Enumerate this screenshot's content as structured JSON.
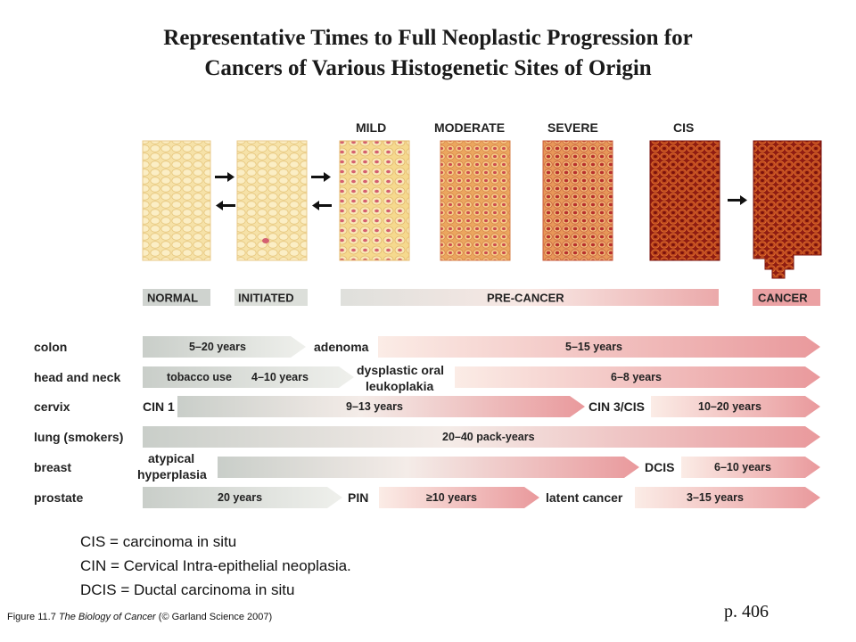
{
  "title": {
    "line1": "Representative Times to Full Neoplastic Progression for",
    "line2": "Cancers of Various Histogenetic Sites of Origin"
  },
  "stages": {
    "mild": "MILD",
    "moderate": "MODERATE",
    "severe": "SEVERE",
    "cis": "CIS"
  },
  "phases": {
    "normal": "NORMAL",
    "initiated": "INITIATED",
    "precancer": "PRE-CANCER",
    "cancer": "CANCER"
  },
  "rows": {
    "colon": {
      "label": "colon",
      "seg1": "5–20 years",
      "mid": "adenoma",
      "seg2": "5–15 years"
    },
    "head": {
      "label": "head and neck",
      "seg1a": "tobacco use",
      "seg1b": "4–10 years",
      "mid1": "dysplastic oral",
      "mid2": "leukoplakia",
      "seg2": "6–8 years"
    },
    "cervix": {
      "label": "cervix",
      "start": "CIN 1",
      "seg1": "9–13 years",
      "mid": "CIN 3/CIS",
      "seg2": "10–20 years"
    },
    "lung": {
      "label": "lung (smokers)",
      "seg1": "20–40 pack-years"
    },
    "breast": {
      "label": "breast",
      "start1": "atypical",
      "start2": "hyperplasia",
      "mid": "DCIS",
      "seg2": "6–10 years"
    },
    "prostate": {
      "label": "prostate",
      "seg1": "20 years",
      "mid1": "PIN",
      "seg2": "≥10 years",
      "mid2": "latent cancer",
      "seg3": "3–15 years"
    }
  },
  "legend": {
    "cis": "CIS =  carcinoma in situ",
    "cin": "CIN = Cervical Intra-epithelial neoplasia.",
    "dcis": "DCIS = Ductal carcinoma in situ"
  },
  "credit": {
    "prefix": "Figure 11.7 ",
    "book": "The Biology of Cancer",
    "suffix": " (© Garland Science 2007)"
  },
  "page_ref": "p. 406",
  "colors": {
    "normal_tissue": "#f4dc9c",
    "cancer_tissue": "#8f1a10",
    "arrow_gray": "#cfd3cf",
    "arrow_pink": "#eba1a3"
  }
}
